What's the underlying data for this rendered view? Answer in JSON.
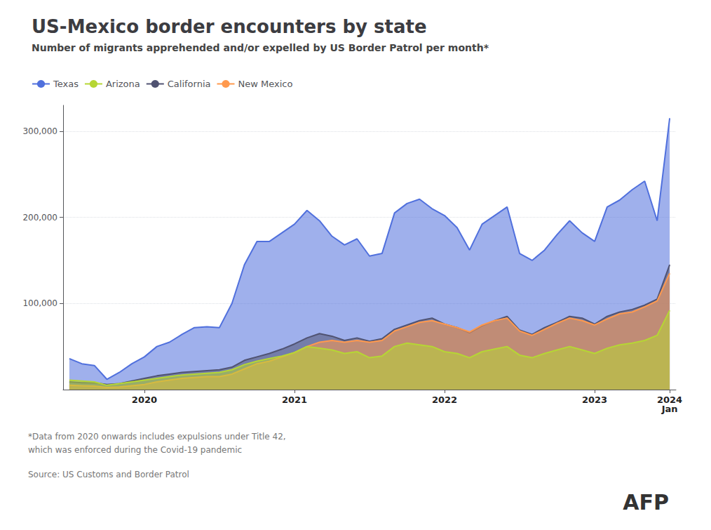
{
  "chart_data": {
    "type": "area",
    "title": "US-Mexico border encounters by state",
    "subtitle": "Number of migrants apprehended and/or expelled by US Border Patrol per month*",
    "annotations": [
      "*Data from 2020 onwards includes expulsions under Title 42,\nwhich was enforced during the Covid-19 pandemic",
      "Source: US Customs and Border Patrol",
      "AFP"
    ],
    "categories": [
      null,
      null,
      null,
      null,
      null,
      null,
      "2020",
      null,
      null,
      null,
      null,
      null,
      null,
      null,
      null,
      null,
      null,
      null,
      "2021",
      null,
      null,
      null,
      null,
      null,
      null,
      null,
      null,
      null,
      null,
      null,
      "2022",
      null,
      null,
      null,
      null,
      null,
      null,
      null,
      null,
      null,
      null,
      null,
      "2023",
      null,
      null,
      null,
      null,
      null,
      "2024\nJan"
    ],
    "series": [
      {
        "name": "Texas",
        "values": [
          36000,
          30000,
          28000,
          12000,
          20000,
          30000,
          38000,
          50000,
          55000,
          64000,
          72000,
          73000,
          72000,
          100000,
          145000,
          172000,
          172000,
          182000,
          192000,
          208000,
          196000,
          178000,
          168000,
          175000,
          155000,
          158000,
          205000,
          216000,
          221000,
          210000,
          202000,
          188000,
          162000,
          192000,
          202000,
          212000,
          158000,
          150000,
          162000,
          180000,
          196000,
          182000,
          172000,
          212000,
          220000,
          232000,
          242000,
          196000,
          315000
        ]
      },
      {
        "name": "Arizona",
        "values": [
          11000,
          10000,
          9000,
          5000,
          7000,
          9000,
          11000,
          13000,
          15000,
          17000,
          18000,
          19000,
          20000,
          23000,
          29000,
          33000,
          36000,
          39000,
          43000,
          50000,
          48000,
          46000,
          42000,
          44000,
          37000,
          39000,
          50000,
          54000,
          52000,
          50000,
          44000,
          42000,
          37000,
          44000,
          47000,
          50000,
          40000,
          37000,
          42000,
          46000,
          50000,
          46000,
          42000,
          48000,
          52000,
          54000,
          57000,
          63000,
          92000
        ]
      },
      {
        "name": "California",
        "values": [
          9000,
          8000,
          8000,
          6000,
          7000,
          10000,
          13000,
          16000,
          18000,
          20000,
          21000,
          22000,
          23000,
          26000,
          34000,
          38000,
          42000,
          47000,
          53000,
          60000,
          65000,
          62000,
          57000,
          60000,
          56000,
          59000,
          70000,
          75000,
          80000,
          83000,
          76000,
          72000,
          66000,
          74000,
          80000,
          85000,
          69000,
          64000,
          72000,
          78000,
          85000,
          83000,
          76000,
          85000,
          90000,
          93000,
          98000,
          105000,
          145000
        ]
      },
      {
        "name": "New Mexico",
        "values": [
          5000,
          4500,
          4000,
          2500,
          3000,
          4500,
          6000,
          9000,
          11000,
          13000,
          14000,
          15000,
          15000,
          18000,
          24000,
          30000,
          33000,
          38000,
          43000,
          50000,
          55000,
          57000,
          55000,
          57000,
          55000,
          57000,
          68000,
          73000,
          78000,
          80000,
          76000,
          72000,
          67000,
          75000,
          80000,
          83000,
          68000,
          63000,
          70000,
          77000,
          83000,
          80000,
          75000,
          82000,
          88000,
          90000,
          96000,
          103000,
          135000
        ]
      }
    ],
    "ylim": [
      0,
      330000
    ],
    "yticks": [
      {
        "value": 100000,
        "label": "100,000"
      },
      {
        "value": 200000,
        "label": "200,000"
      },
      {
        "value": 300000,
        "label": "300,000"
      }
    ],
    "grid": true,
    "legend": "top"
  }
}
